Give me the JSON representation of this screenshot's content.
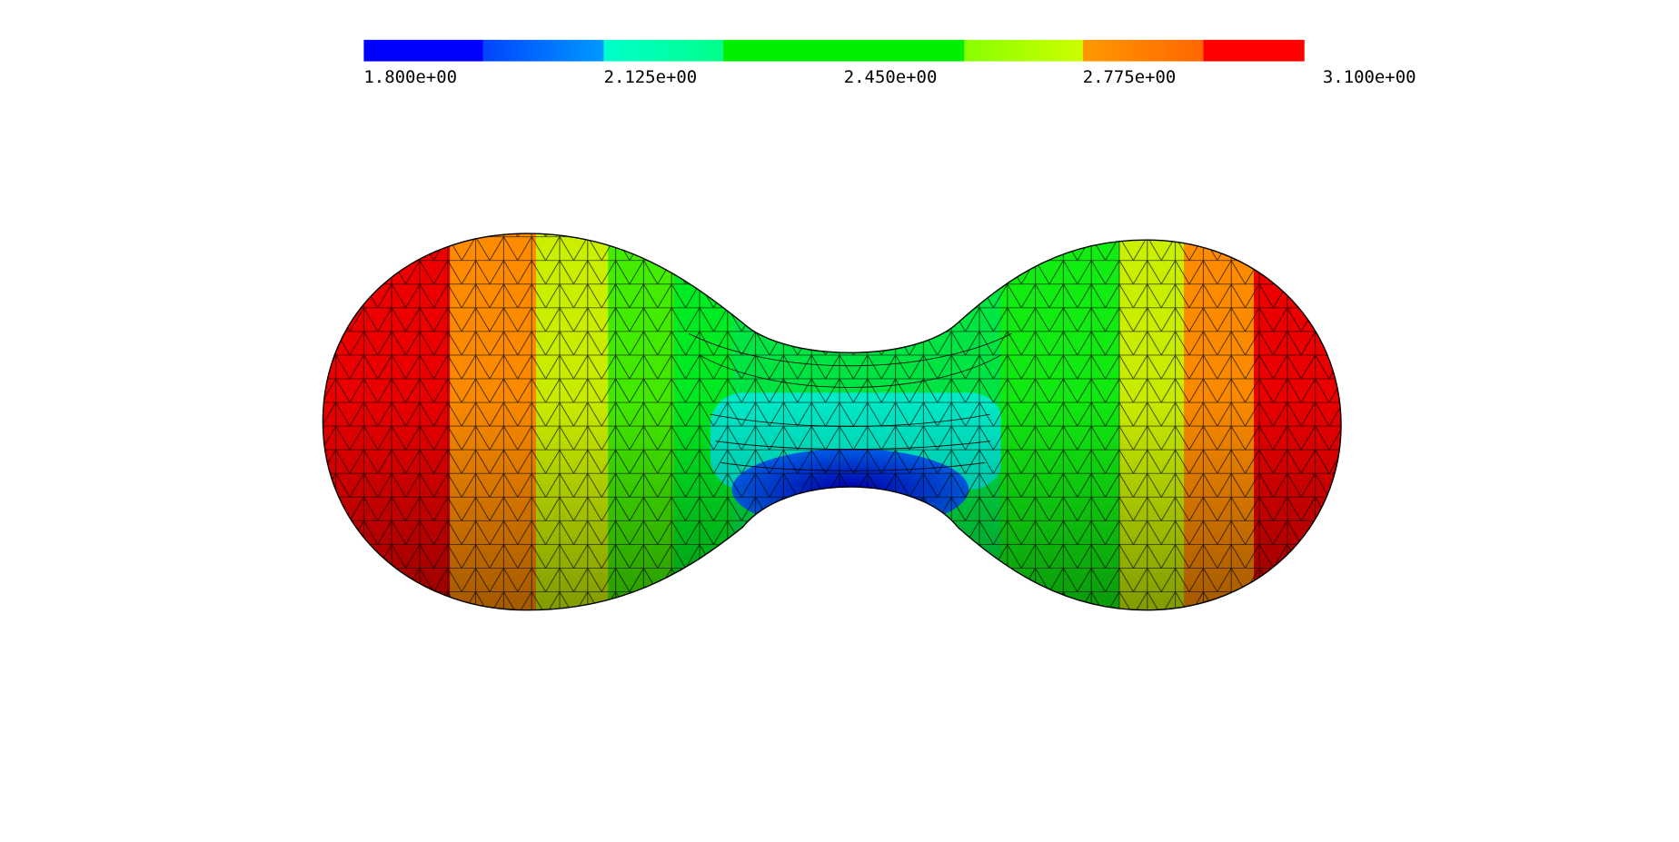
{
  "colorbar": {
    "labels": [
      "1.800e+00",
      "2.125e+00",
      "2.450e+00",
      "2.775e+00",
      "3.100e+00"
    ]
  }
}
